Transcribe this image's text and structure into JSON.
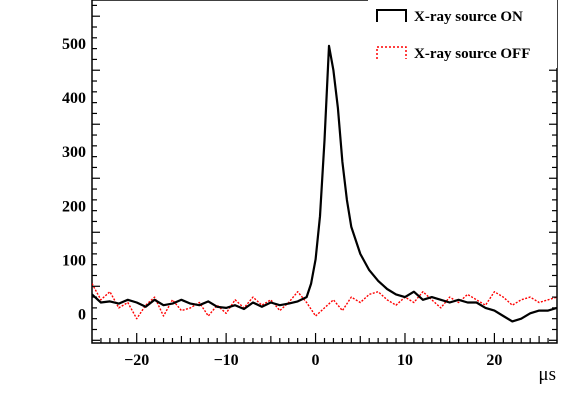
{
  "chart_data": {
    "type": "line",
    "title": "",
    "xlabel": "μs",
    "ylabel": "",
    "xlim": [
      -25,
      27
    ],
    "ylim": [
      -55,
      580
    ],
    "x_ticks": [
      -20,
      -10,
      0,
      10,
      20
    ],
    "x_tick_labels": [
      "−20",
      "−10",
      "0",
      "10",
      "20"
    ],
    "y_ticks": [
      0,
      100,
      200,
      300,
      400,
      500
    ],
    "y_tick_labels": [
      "0",
      "100",
      "200",
      "300",
      "400",
      "500"
    ],
    "grid": false,
    "legend_position": "top-right",
    "series": [
      {
        "name": "X-ray source ON",
        "color": "#000000",
        "line_style": "solid",
        "x": [
          -25,
          -24,
          -23,
          -22,
          -21,
          -20,
          -19,
          -18,
          -17,
          -16,
          -15,
          -14,
          -13,
          -12,
          -11,
          -10,
          -9,
          -8,
          -7,
          -6,
          -5,
          -4,
          -3,
          -2,
          -1,
          -0.5,
          0,
          0.5,
          1,
          1.5,
          2,
          2.5,
          3,
          3.5,
          4,
          5,
          6,
          7,
          8,
          9,
          10,
          11,
          12,
          13,
          14,
          15,
          16,
          17,
          18,
          19,
          20,
          21,
          22,
          23,
          24,
          25,
          26,
          27
        ],
        "y": [
          35,
          20,
          22,
          18,
          25,
          20,
          12,
          25,
          15,
          18,
          25,
          18,
          15,
          22,
          12,
          10,
          15,
          8,
          20,
          12,
          20,
          15,
          18,
          22,
          30,
          55,
          100,
          180,
          320,
          495,
          450,
          380,
          280,
          210,
          160,
          110,
          80,
          60,
          45,
          35,
          30,
          40,
          25,
          30,
          25,
          20,
          25,
          20,
          20,
          10,
          5,
          -5,
          -15,
          -10,
          0,
          5,
          5,
          10
        ]
      },
      {
        "name": "X-ray source OFF",
        "color": "#ff0000",
        "line_style": "dotted",
        "x": [
          -25,
          -24,
          -23,
          -22,
          -21,
          -20,
          -19,
          -18,
          -17,
          -16,
          -15,
          -14,
          -13,
          -12,
          -11,
          -10,
          -9,
          -8,
          -7,
          -6,
          -5,
          -4,
          -3,
          -2,
          -1,
          0,
          1,
          2,
          3,
          4,
          5,
          6,
          7,
          8,
          9,
          10,
          11,
          12,
          13,
          14,
          15,
          16,
          17,
          18,
          19,
          20,
          21,
          22,
          23,
          24,
          25,
          26,
          27
        ],
        "y": [
          55,
          25,
          40,
          10,
          20,
          -10,
          15,
          30,
          -5,
          25,
          5,
          10,
          20,
          -5,
          15,
          0,
          25,
          10,
          30,
          15,
          25,
          5,
          20,
          40,
          20,
          -5,
          10,
          25,
          5,
          30,
          20,
          35,
          40,
          25,
          15,
          30,
          20,
          40,
          25,
          10,
          30,
          20,
          35,
          25,
          15,
          40,
          30,
          15,
          25,
          30,
          20,
          25,
          30
        ]
      }
    ]
  }
}
